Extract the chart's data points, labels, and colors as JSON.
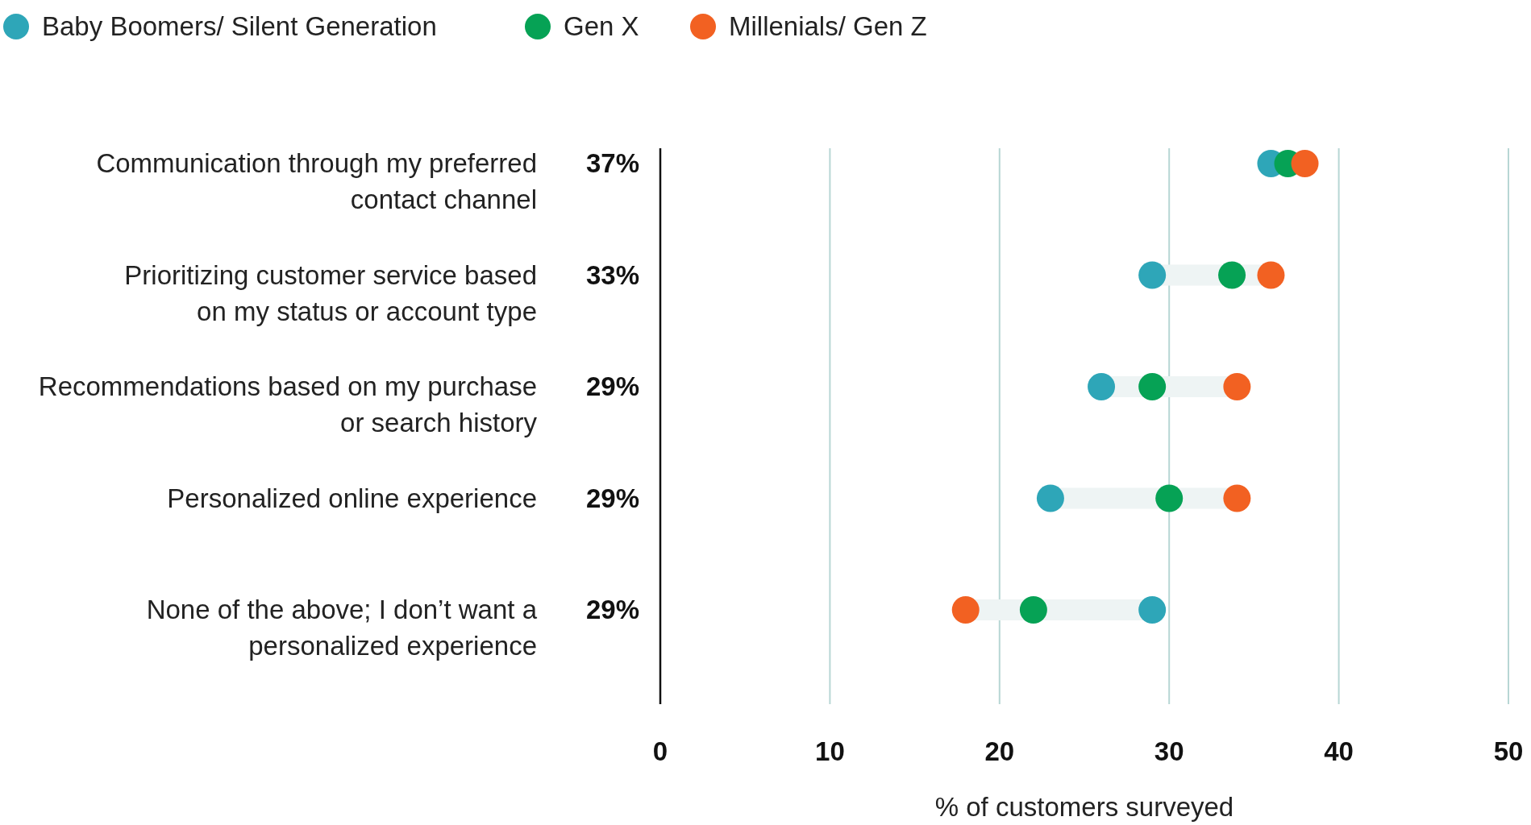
{
  "chart_data": {
    "type": "scatter",
    "orientation": "horizontal",
    "xlabel": "% of customers surveyed",
    "categories": [
      "Communication through my preferred contact channel",
      "Prioritizing customer service based on my status or account type",
      "Recommendations based on my purchase or search history",
      "Personalized online experience",
      "None of the above; I don’t want a personalized experience"
    ],
    "series": [
      {
        "name": "Baby Boomers/ Silent Generation",
        "color": "#2ea6b8",
        "values": [
          36,
          29,
          26,
          23,
          29
        ]
      },
      {
        "name": "Gen X",
        "color": "#06a255",
        "values": [
          37,
          33.7,
          29,
          30,
          22
        ]
      },
      {
        "name": "Millenials/ Gen Z",
        "color": "#f26122",
        "values": [
          38,
          36,
          34,
          34,
          18
        ]
      }
    ],
    "annotations": [
      "37%",
      "33%",
      "29%",
      "29%",
      "29%"
    ],
    "xlim": [
      0,
      50
    ],
    "xticks": [
      0,
      10,
      20,
      30,
      40,
      50
    ],
    "grid": "x",
    "legend": "top left",
    "marker": "circle"
  }
}
